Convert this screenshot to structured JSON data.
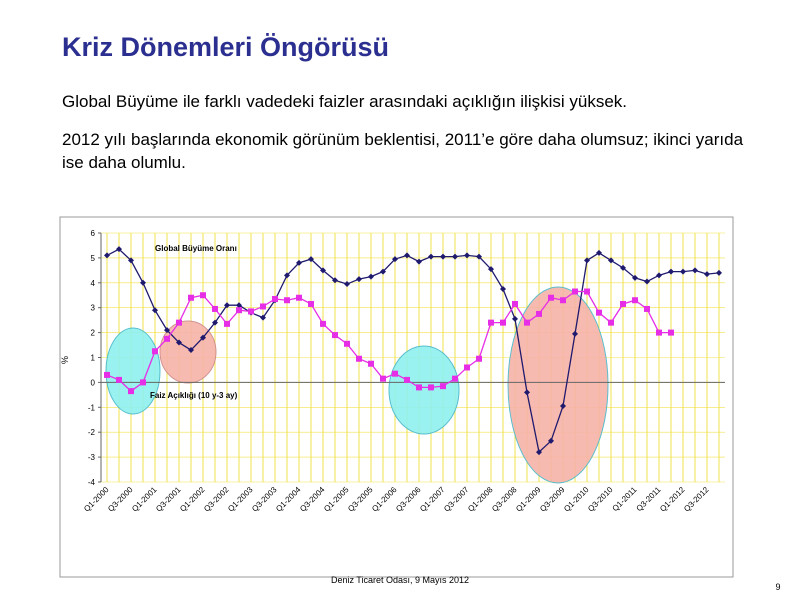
{
  "slide": {
    "title": "Kriz Dönemleri Öngörüsü",
    "bullets": [
      "Global Büyüme ile farklı vadedeki faizler arasındaki açıklığın ilişkisi yüksek.",
      "2012 yılı başlarında ekonomik görünüm beklentisi, 2011’e göre daha olumsuz; ikinci yarıda ise daha olumlu."
    ],
    "footer": "Deniz Ticaret Odası, 9 Mayıs 2012",
    "page_number": "9"
  },
  "chart_data": {
    "type": "line",
    "y_label": "%",
    "categories": [
      "Q1-2000",
      null,
      "Q3-2000",
      null,
      "Q1-2001",
      null,
      "Q3-2001",
      null,
      "Q1-2002",
      null,
      "Q3-2002",
      null,
      "Q1-2003",
      null,
      "Q3-2003",
      null,
      "Q1-2004",
      null,
      "Q3-2004",
      null,
      "Q1-2005",
      null,
      "Q3-2005",
      null,
      "Q1-2006",
      null,
      "Q3-2006",
      null,
      "Q1-2007",
      null,
      "Q3-2007",
      null,
      "Q1-2008",
      null,
      "Q3-2008",
      null,
      "Q1-2009",
      null,
      "Q3-2009",
      null,
      "Q1-2010",
      null,
      "Q3-2010",
      null,
      "Q1-2011",
      null,
      "Q3-2011",
      null,
      "Q1-2012",
      null,
      "Q3-2012",
      null
    ],
    "series": [
      {
        "name": "Global Büyüme Oranı",
        "color": "#1f1a6e",
        "marker": "diamond",
        "values": [
          5.1,
          5.35,
          4.9,
          4.0,
          2.9,
          2.1,
          1.6,
          1.3,
          1.8,
          2.4,
          3.1,
          3.1,
          2.8,
          2.6,
          3.3,
          4.3,
          4.8,
          4.95,
          4.5,
          4.1,
          3.95,
          4.15,
          4.25,
          4.45,
          4.95,
          5.1,
          4.85,
          5.05,
          5.05,
          5.05,
          5.1,
          5.05,
          4.55,
          3.75,
          2.55,
          -0.4,
          -2.8,
          -2.35,
          -0.95,
          1.95,
          4.9,
          5.2,
          4.9,
          4.6,
          4.2,
          4.05,
          4.3,
          4.45,
          4.45,
          4.5,
          4.35,
          4.4
        ]
      },
      {
        "name": "Faiz Açıklığı  (10 y-3 ay)",
        "color": "#e62ee6",
        "marker": "square",
        "values": [
          0.3,
          0.1,
          -0.35,
          0.0,
          1.25,
          1.75,
          2.4,
          3.4,
          3.5,
          2.95,
          2.35,
          2.9,
          2.85,
          3.05,
          3.35,
          3.3,
          3.4,
          3.15,
          2.35,
          1.9,
          1.55,
          0.95,
          0.75,
          0.15,
          0.35,
          0.1,
          -0.2,
          -0.2,
          -0.15,
          0.15,
          0.6,
          0.95,
          2.4,
          2.4,
          3.15,
          2.4,
          2.75,
          3.4,
          3.3,
          3.65,
          3.65,
          2.8,
          2.4,
          3.15,
          3.3,
          2.95,
          2.0,
          2.0,
          null,
          null,
          null,
          null
        ]
      }
    ],
    "ylim": [
      -4,
      6
    ],
    "yticks": [
      -4,
      -3,
      -2,
      -1,
      0,
      1,
      2,
      3,
      4,
      5,
      6
    ],
    "grid": true
  }
}
